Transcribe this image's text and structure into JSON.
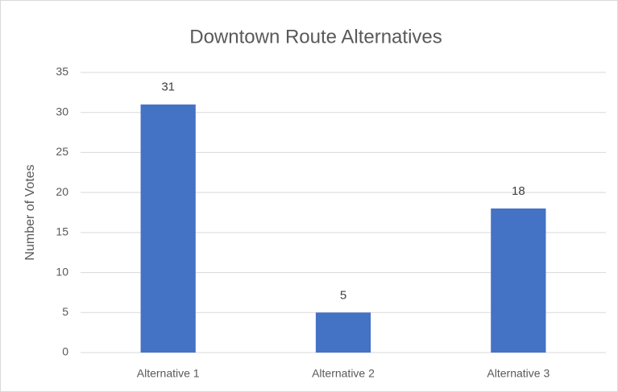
{
  "chart_data": {
    "type": "bar",
    "title": "Downtown Route Alternatives",
    "y_label": "Number of Votes",
    "categories": [
      "Alternative 1",
      "Alternative 2",
      "Alternative 3"
    ],
    "values": [
      31,
      5,
      18
    ],
    "color": "#4472c4",
    "ylim": [
      0,
      35
    ],
    "yticks": [
      0,
      5,
      10,
      15,
      20,
      25,
      30,
      35
    ],
    "grid": true,
    "data_labels": true
  }
}
